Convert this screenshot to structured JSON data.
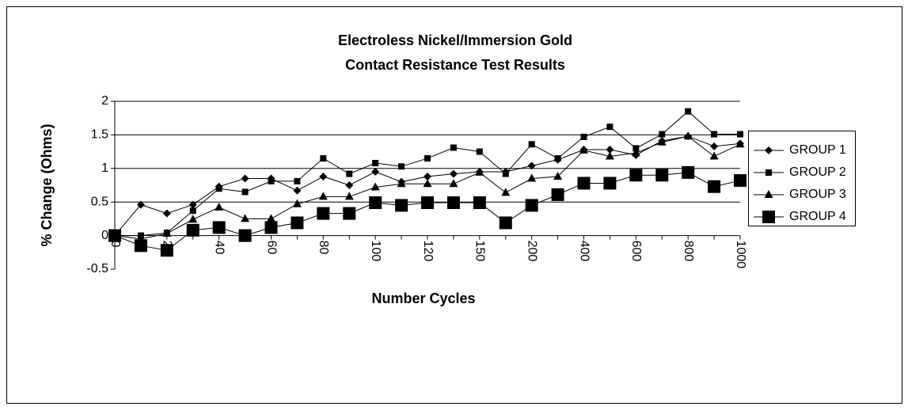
{
  "chart_data": {
    "type": "line",
    "title": [
      "Electroless Nickel/Immersion Gold",
      "Contact Resistance Test Results"
    ],
    "x_label": "Number Cycles",
    "y_label": "% Change (Ohms)",
    "categories": [
      "0",
      null,
      "20",
      null,
      "40",
      null,
      "60",
      null,
      "80",
      null,
      "100",
      null,
      "120",
      null,
      "150",
      null,
      "200",
      null,
      "400",
      null,
      "600",
      null,
      "800",
      null,
      "1000"
    ],
    "ylim": [
      -0.5,
      2
    ],
    "yticks": [
      -0.5,
      0,
      0.5,
      1,
      1.5,
      2
    ],
    "grid": true,
    "legend": "right",
    "series": [
      {
        "name": "GROUP 1",
        "color": "#000000",
        "marker": "diamond",
        "values": [
          0,
          0.46,
          0.33,
          0.46,
          0.73,
          0.85,
          0.85,
          0.67,
          0.88,
          0.75,
          0.95,
          0.8,
          0.88,
          0.92,
          0.95,
          0.95,
          1.04,
          1.13,
          1.28,
          1.28,
          1.2,
          1.41,
          1.48,
          1.33,
          1.37
        ]
      },
      {
        "name": "GROUP 2",
        "color": "#000000",
        "marker": "square",
        "values": [
          0,
          0,
          0.04,
          0.37,
          0.7,
          0.65,
          0.81,
          0.81,
          1.15,
          0.92,
          1.08,
          1.03,
          1.15,
          1.31,
          1.25,
          0.92,
          1.36,
          1.15,
          1.47,
          1.62,
          1.3,
          1.51,
          1.85,
          1.51,
          1.51
        ]
      },
      {
        "name": "GROUP 3",
        "color": "#000000",
        "marker": "triangle",
        "values": [
          0,
          -0.05,
          0.03,
          0.24,
          0.42,
          0.25,
          0.25,
          0.47,
          0.58,
          0.58,
          0.72,
          0.77,
          0.77,
          0.77,
          0.94,
          0.64,
          0.85,
          0.88,
          1.27,
          1.18,
          1.23,
          1.39,
          1.48,
          1.18,
          1.36
        ]
      },
      {
        "name": "GROUP 4",
        "color": "#000000",
        "marker": "bigsquare",
        "values": [
          0,
          -0.15,
          -0.22,
          0.08,
          0.12,
          0,
          0.12,
          0.19,
          0.33,
          0.33,
          0.49,
          0.45,
          0.49,
          0.49,
          0.49,
          0.19,
          0.45,
          0.61,
          0.78,
          0.78,
          0.9,
          0.9,
          0.94,
          0.73,
          0.82
        ]
      }
    ]
  }
}
